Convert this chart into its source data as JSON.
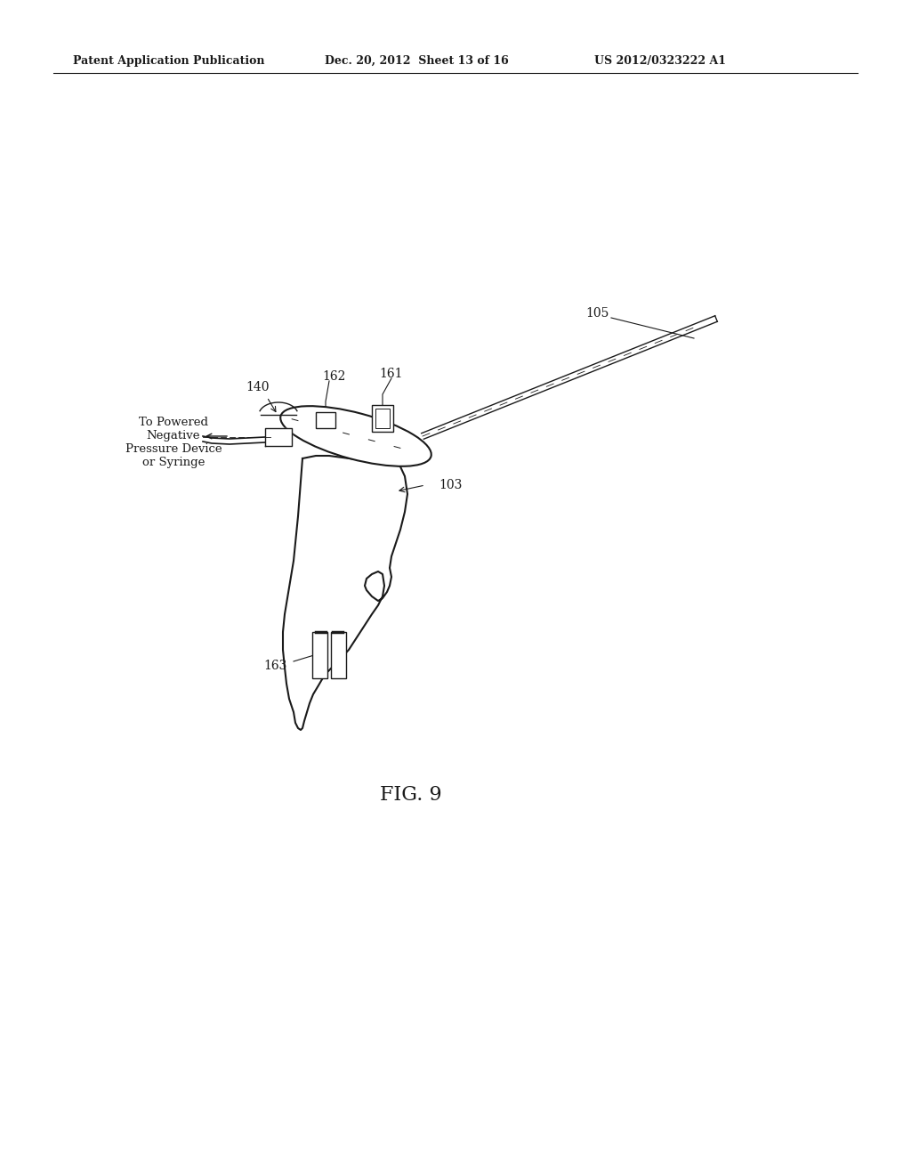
{
  "bg_color": "#ffffff",
  "line_color": "#1a1a1a",
  "header_left": "Patent Application Publication",
  "header_mid": "Dec. 20, 2012  Sheet 13 of 16",
  "header_right": "US 2012/0323222 A1",
  "fig_label": "FIG. 9"
}
